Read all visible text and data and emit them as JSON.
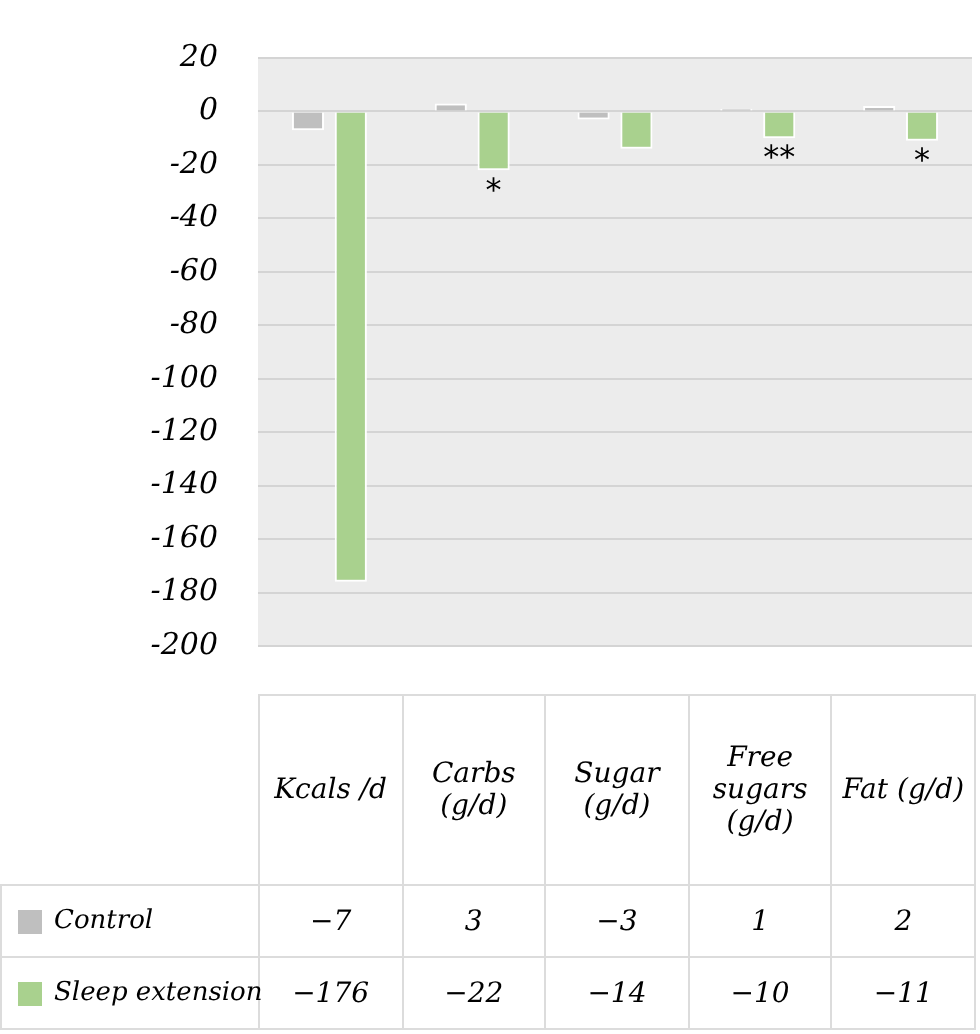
{
  "chart_data": {
    "type": "bar",
    "categories": [
      "Kcals /d",
      "Carbs (g/d)",
      "Sugar (g/d)",
      "Free sugars (g/d)",
      "Fat (g/d)"
    ],
    "series": [
      {
        "name": "Control",
        "color": "#bfbfbf",
        "values": [
          -7,
          3,
          -3,
          1,
          2
        ]
      },
      {
        "name": "Sleep extension",
        "color": "#a9d18e",
        "values": [
          -176,
          -22,
          -14,
          -10,
          -11
        ]
      }
    ],
    "ylim": [
      -200,
      20
    ],
    "yticks": [
      20,
      0,
      -20,
      -40,
      -60,
      -80,
      -100,
      -120,
      -140,
      -160,
      -180,
      -200
    ],
    "grid": "y",
    "tick_labels": "y",
    "legend": "bottom",
    "data_labels": true,
    "annotations": [
      {
        "text": "*",
        "x": "Carbs (g/d)",
        "y": -22
      },
      {
        "text": "**",
        "x": "Free sugars (g/d)",
        "y": -10
      },
      {
        "text": "*",
        "x": "Fat (g/d)",
        "y": -11
      }
    ]
  }
}
